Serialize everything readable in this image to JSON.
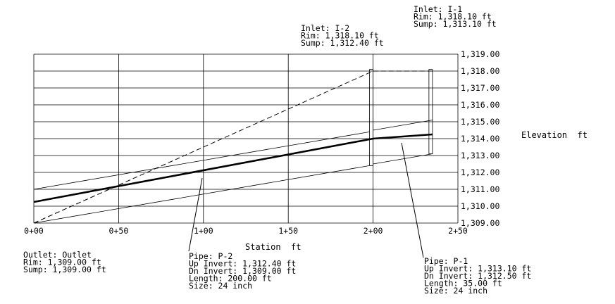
{
  "chart_data": {
    "type": "profile",
    "xlabel": "Station  ft",
    "ylabel": "Elevation  ft",
    "xlim": [
      0,
      250
    ],
    "ylim": [
      1309,
      1319
    ],
    "x_ticks": [
      "0+00",
      "0+50",
      "1+00",
      "1+50",
      "2+00",
      "2+50"
    ],
    "y_ticks": [
      "1,309.00",
      "1,310.00",
      "1,311.00",
      "1,312.00",
      "1,313.00",
      "1,314.00",
      "1,315.00",
      "1,316.00",
      "1,317.00",
      "1,318.00",
      "1,319.00"
    ],
    "y_tick_values": [
      1309,
      1310,
      1311,
      1312,
      1313,
      1314,
      1315,
      1316,
      1317,
      1318,
      1319
    ],
    "x_tick_values": [
      0,
      50,
      100,
      150,
      200,
      250
    ],
    "structures": [
      {
        "station": 0,
        "rim": 1309.0,
        "sump": 1309.0,
        "lines": [
          "Outlet: Outlet",
          "Rim: 1,309.00 ft",
          "Sump: 1,309.00 ft"
        ]
      },
      {
        "station": 200,
        "rim": 1318.1,
        "sump": 1312.4,
        "lines": [
          "Inlet: I-2",
          "Rim: 1,318.10 ft",
          "Sump: 1,312.40 ft"
        ]
      },
      {
        "station": 235,
        "rim": 1318.1,
        "sump": 1313.1,
        "lines": [
          "Inlet: I-1",
          "Rim: 1,318.10 ft",
          "Sump: 1,313.10 ft"
        ]
      }
    ],
    "pipes": [
      {
        "name": "P-2",
        "from_station": 0,
        "to_station": 200,
        "dn_invert": 1309.0,
        "up_invert": 1312.4,
        "diameter_ft": 2,
        "lines": [
          "Pipe: P-2",
          "Up Invert: 1,312.40 ft",
          "Dn Invert: 1,309.00 ft",
          "Length: 200.00 ft",
          "Size: 24 inch"
        ]
      },
      {
        "name": "P-1",
        "from_station": 200,
        "to_station": 235,
        "dn_invert": 1312.5,
        "up_invert": 1313.1,
        "diameter_ft": 2,
        "lines": [
          "Pipe: P-1",
          "Up Invert: 1,313.10 ft",
          "Dn Invert: 1,312.50 ft",
          "Length: 35.00 ft",
          "Size: 24 inch"
        ]
      }
    ],
    "hgl": [
      [
        0,
        1310.25
      ],
      [
        200,
        1314.0
      ],
      [
        235,
        1314.25
      ]
    ],
    "egl_dashed": [
      [
        0,
        1309.0
      ],
      [
        200,
        1318.0
      ],
      [
        235,
        1318.0
      ]
    ]
  }
}
